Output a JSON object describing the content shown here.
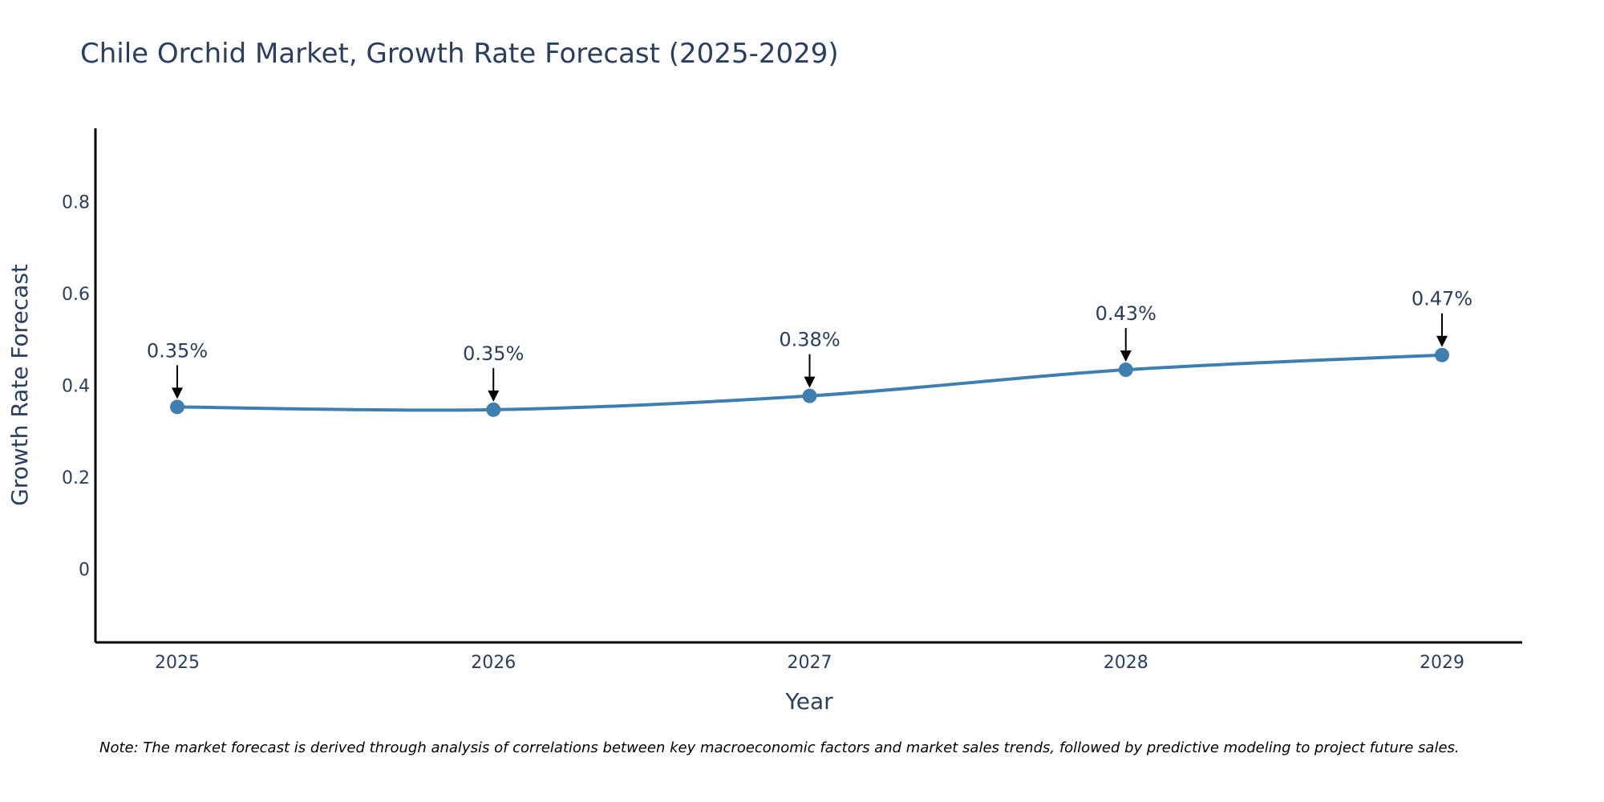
{
  "chart_data": {
    "type": "line",
    "title": "Chile Orchid Market, Growth Rate Forecast (2025-2029)",
    "xlabel": "Year",
    "ylabel": "Growth Rate Forecast",
    "categories": [
      "2025",
      "2026",
      "2027",
      "2028",
      "2029"
    ],
    "values": [
      0.353,
      0.347,
      0.377,
      0.434,
      0.466
    ],
    "data_labels": [
      "0.35%",
      "0.35%",
      "0.38%",
      "0.43%",
      "0.47%"
    ],
    "y_ticks": [
      0,
      0.2,
      0.4,
      0.6,
      0.8
    ],
    "y_tick_labels": [
      "0",
      "0.2",
      "0.4",
      "0.6",
      "0.8"
    ],
    "ylim": [
      -0.16,
      0.96
    ],
    "grid": false,
    "legend": "none",
    "line_color": "#3f7fb0",
    "marker_color": "#3f7fb0",
    "arrow_color": "#000000"
  },
  "note": "Note: The market forecast is derived through analysis of correlations between key macroeconomic factors and market sales trends, followed by predictive modeling to project future sales."
}
